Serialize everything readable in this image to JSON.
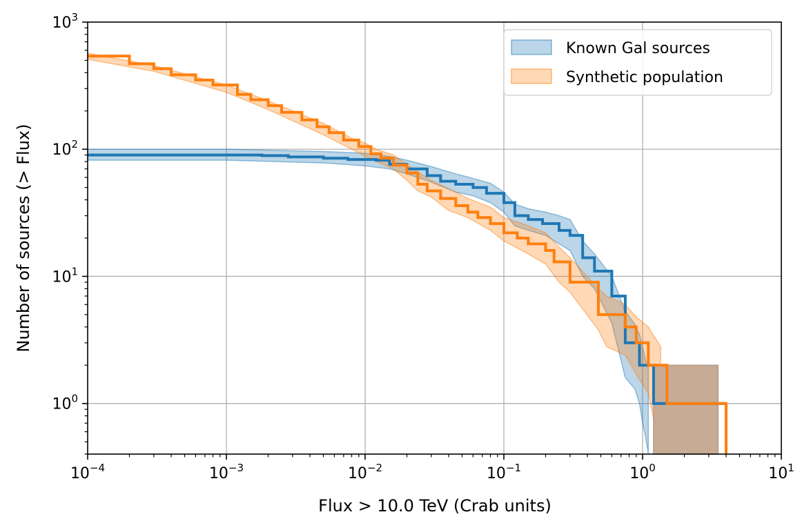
{
  "chart_data": {
    "type": "line",
    "subtype": "cumulative step plot (logN-logS) with uncertainty bands",
    "title": "",
    "xlabel": "Flux > 10.0 TeV (Crab units)",
    "ylabel": "Number of sources (> Flux)",
    "xscale": "log",
    "yscale": "log",
    "xlim": [
      0.0001,
      10
    ],
    "ylim": [
      0.4,
      1000
    ],
    "grid": true,
    "legend_position": "top-right",
    "x_ticks": [
      {
        "base": "10",
        "exp": "−4"
      },
      {
        "base": "10",
        "exp": "−3"
      },
      {
        "base": "10",
        "exp": "−2"
      },
      {
        "base": "10",
        "exp": "−1"
      },
      {
        "base": "10",
        "exp": "0"
      },
      {
        "base": "10",
        "exp": "1"
      }
    ],
    "y_ticks": [
      {
        "base": "10",
        "exp": "0"
      },
      {
        "base": "10",
        "exp": "1"
      },
      {
        "base": "10",
        "exp": "2"
      },
      {
        "base": "10",
        "exp": "3"
      }
    ],
    "series": [
      {
        "name": "Known Gal sources",
        "color": "#1f77b4",
        "band_alpha": 0.3,
        "points": [
          [
            0.0001,
            90
          ],
          [
            0.0018,
            89
          ],
          [
            0.0028,
            87
          ],
          [
            0.005,
            85
          ],
          [
            0.0075,
            83
          ],
          [
            0.012,
            82
          ],
          [
            0.015,
            76
          ],
          [
            0.02,
            70
          ],
          [
            0.028,
            62
          ],
          [
            0.035,
            56
          ],
          [
            0.045,
            53
          ],
          [
            0.06,
            50
          ],
          [
            0.075,
            45
          ],
          [
            0.1,
            38
          ],
          [
            0.12,
            30
          ],
          [
            0.15,
            28
          ],
          [
            0.19,
            26
          ],
          [
            0.25,
            23
          ],
          [
            0.3,
            21
          ],
          [
            0.37,
            14
          ],
          [
            0.45,
            11
          ],
          [
            0.6,
            7
          ],
          [
            0.75,
            3
          ],
          [
            0.88,
            3
          ],
          [
            0.95,
            2
          ],
          [
            1.2,
            1
          ],
          [
            4.0,
            1
          ]
        ],
        "band": [
          [
            0.0001,
            82,
            100
          ],
          [
            0.001,
            82,
            100
          ],
          [
            0.005,
            78,
            96
          ],
          [
            0.01,
            74,
            93
          ],
          [
            0.015,
            70,
            88
          ],
          [
            0.02,
            64,
            82
          ],
          [
            0.03,
            55,
            73
          ],
          [
            0.045,
            46,
            64
          ],
          [
            0.06,
            43,
            59
          ],
          [
            0.08,
            38,
            54
          ],
          [
            0.1,
            32,
            46
          ],
          [
            0.12,
            25,
            37
          ],
          [
            0.15,
            23,
            34
          ],
          [
            0.2,
            21,
            32
          ],
          [
            0.25,
            18,
            30
          ],
          [
            0.3,
            16,
            28
          ],
          [
            0.37,
            10,
            19
          ],
          [
            0.45,
            8,
            15
          ],
          [
            0.6,
            4.3,
            10
          ],
          [
            0.75,
            1.6,
            5.3
          ],
          [
            0.88,
            1.3,
            4.2
          ],
          [
            0.95,
            1.0,
            3.5
          ],
          [
            1.0,
            0.7,
            2.8
          ],
          [
            1.05,
            0.55,
            2.2
          ],
          [
            1.1,
            0.4,
            1.9
          ]
        ]
      },
      {
        "name": "Synthetic population",
        "color": "#ff7f0e",
        "band_alpha": 0.3,
        "points": [
          [
            0.0001,
            540
          ],
          [
            0.0002,
            470
          ],
          [
            0.0003,
            430
          ],
          [
            0.0004,
            385
          ],
          [
            0.0006,
            350
          ],
          [
            0.0008,
            320
          ],
          [
            0.0012,
            270
          ],
          [
            0.0015,
            245
          ],
          [
            0.002,
            220
          ],
          [
            0.0025,
            195
          ],
          [
            0.0035,
            170
          ],
          [
            0.0045,
            150
          ],
          [
            0.0055,
            135
          ],
          [
            0.007,
            118
          ],
          [
            0.009,
            105
          ],
          [
            0.011,
            92
          ],
          [
            0.013,
            85
          ],
          [
            0.016,
            75
          ],
          [
            0.02,
            65
          ],
          [
            0.024,
            53
          ],
          [
            0.028,
            47
          ],
          [
            0.035,
            41
          ],
          [
            0.045,
            36
          ],
          [
            0.055,
            32
          ],
          [
            0.065,
            29
          ],
          [
            0.08,
            26
          ],
          [
            0.1,
            22
          ],
          [
            0.125,
            20
          ],
          [
            0.15,
            18
          ],
          [
            0.2,
            16
          ],
          [
            0.23,
            13
          ],
          [
            0.3,
            9
          ],
          [
            0.35,
            9
          ],
          [
            0.48,
            5
          ],
          [
            0.75,
            4
          ],
          [
            0.9,
            3
          ],
          [
            1.1,
            2
          ],
          [
            1.5,
            1
          ],
          [
            4.0,
            1
          ],
          [
            4.0,
            0.4
          ]
        ],
        "band": [
          [
            0.0001,
            510,
            570
          ],
          [
            0.0003,
            410,
            455
          ],
          [
            0.001,
            280,
            320
          ],
          [
            0.002,
            205,
            240
          ],
          [
            0.005,
            130,
            160
          ],
          [
            0.008,
            100,
            122
          ],
          [
            0.01,
            88,
            112
          ],
          [
            0.012,
            80,
            100
          ],
          [
            0.016,
            70,
            90
          ],
          [
            0.02,
            57,
            76
          ],
          [
            0.024,
            47,
            66
          ],
          [
            0.03,
            42,
            57
          ],
          [
            0.04,
            33,
            49
          ],
          [
            0.055,
            29,
            41
          ],
          [
            0.08,
            23,
            35
          ],
          [
            0.1,
            19,
            29
          ],
          [
            0.15,
            15,
            25
          ],
          [
            0.2,
            12.5,
            22
          ],
          [
            0.25,
            9,
            17
          ],
          [
            0.3,
            7.5,
            14
          ],
          [
            0.48,
            3.8,
            8
          ],
          [
            0.55,
            2.8,
            7
          ],
          [
            0.75,
            2.4,
            6
          ],
          [
            0.9,
            1.7,
            4.8
          ],
          [
            1.1,
            1.2,
            4.0
          ],
          [
            1.35,
            0.4,
            2.8
          ]
        ]
      }
    ],
    "overlap_region": {
      "color": "#c8ab95",
      "x_range": [
        1.2,
        3.5
      ],
      "y_range": [
        0.4,
        2
      ]
    }
  }
}
